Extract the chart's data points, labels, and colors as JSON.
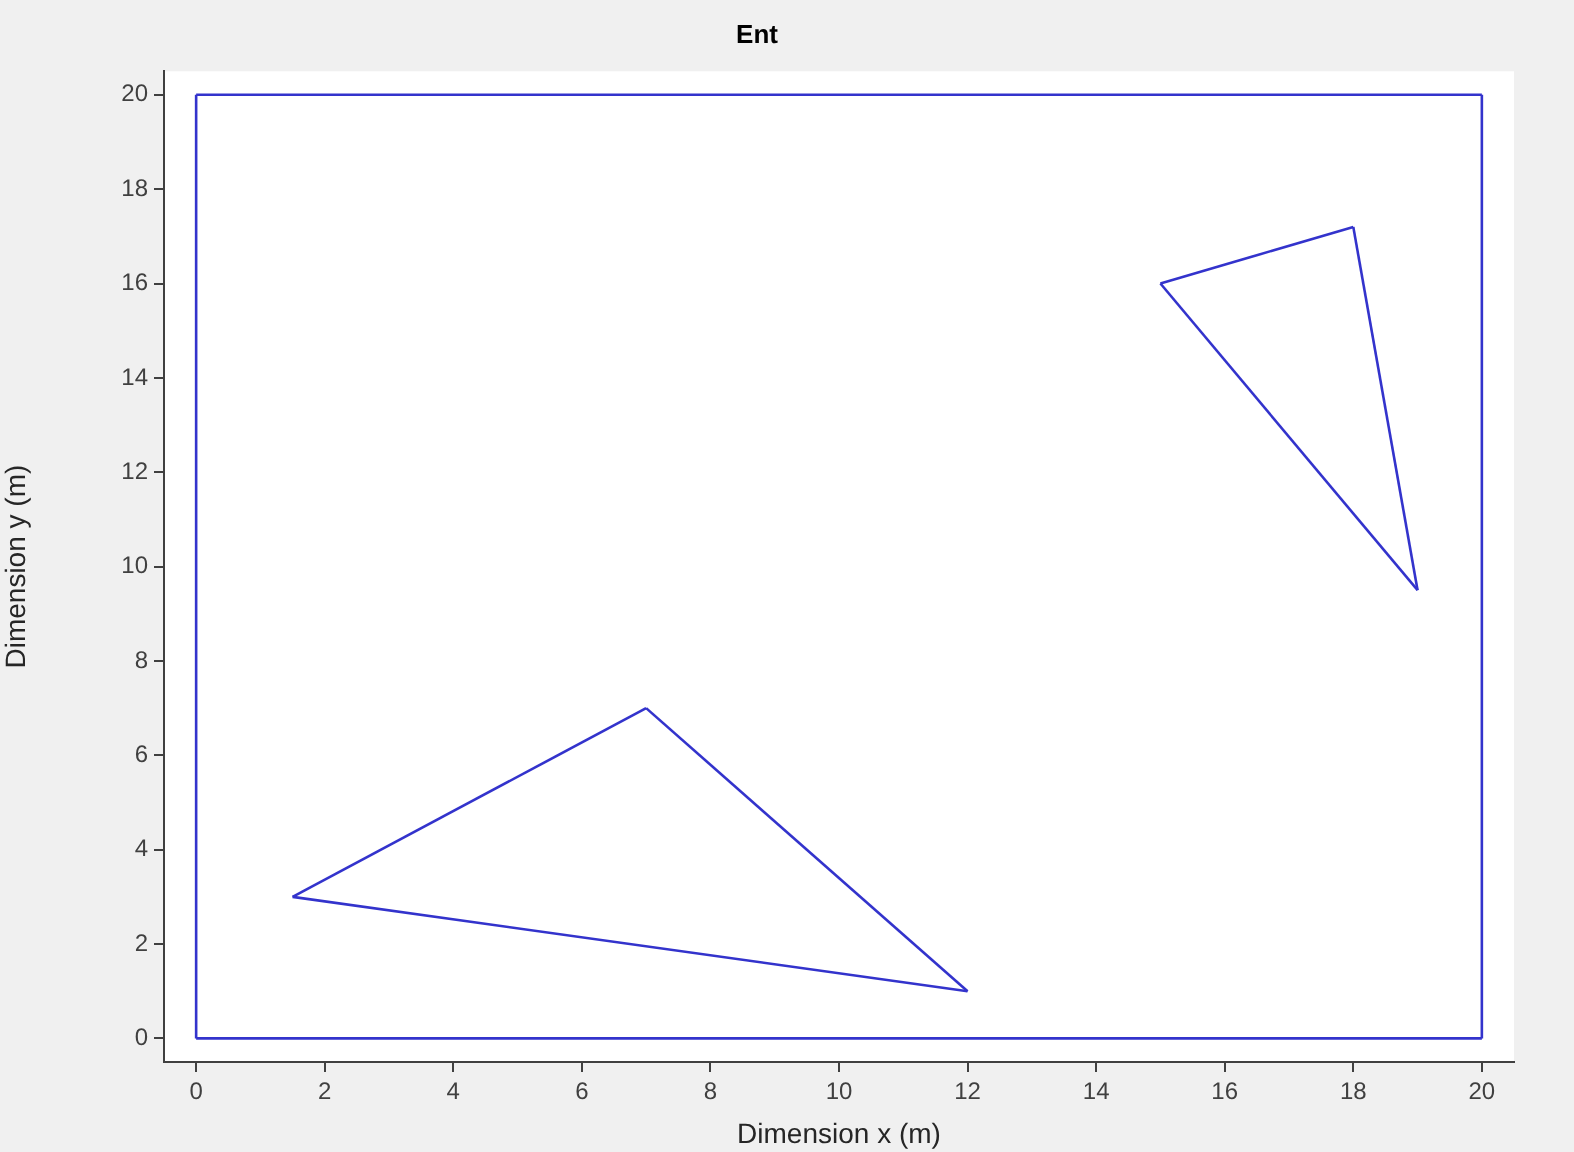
{
  "chart_data": {
    "type": "line",
    "title": "Ent",
    "xlabel": "Dimension x (m)",
    "ylabel": "Dimension y (m)",
    "xlim": [
      -0.5,
      20.5
    ],
    "ylim": [
      -0.5,
      20.5
    ],
    "xticks": [
      0,
      2,
      4,
      6,
      8,
      10,
      12,
      14,
      16,
      18,
      20
    ],
    "yticks": [
      0,
      2,
      4,
      6,
      8,
      10,
      12,
      14,
      16,
      18,
      20
    ],
    "grid": false,
    "legend": false,
    "marker": "none",
    "line_style": "solid",
    "series": [
      {
        "color": "#3333cc",
        "x": [
          0,
          20
        ],
        "values": [
          0,
          0
        ]
      },
      {
        "color": "#3333cc",
        "x": [
          0,
          20
        ],
        "values": [
          20,
          20
        ]
      },
      {
        "color": "#3333cc",
        "x": [
          0,
          0
        ],
        "values": [
          0,
          20
        ]
      },
      {
        "color": "#3333cc",
        "x": [
          20,
          20
        ],
        "values": [
          0,
          20
        ]
      },
      {
        "color": "#3333cc",
        "x": [
          1.5,
          7
        ],
        "values": [
          3,
          7
        ]
      },
      {
        "color": "#3333cc",
        "x": [
          7,
          12
        ],
        "values": [
          7,
          1
        ]
      },
      {
        "color": "#3333cc",
        "x": [
          1.5,
          12
        ],
        "values": [
          3,
          1
        ]
      },
      {
        "color": "#3333cc",
        "x": [
          15,
          18
        ],
        "values": [
          16,
          17.2
        ]
      },
      {
        "color": "#3333cc",
        "x": [
          18,
          19
        ],
        "values": [
          17.2,
          9.5
        ]
      },
      {
        "color": "#3333cc",
        "x": [
          15,
          19
        ],
        "values": [
          16,
          9.5
        ]
      }
    ]
  }
}
